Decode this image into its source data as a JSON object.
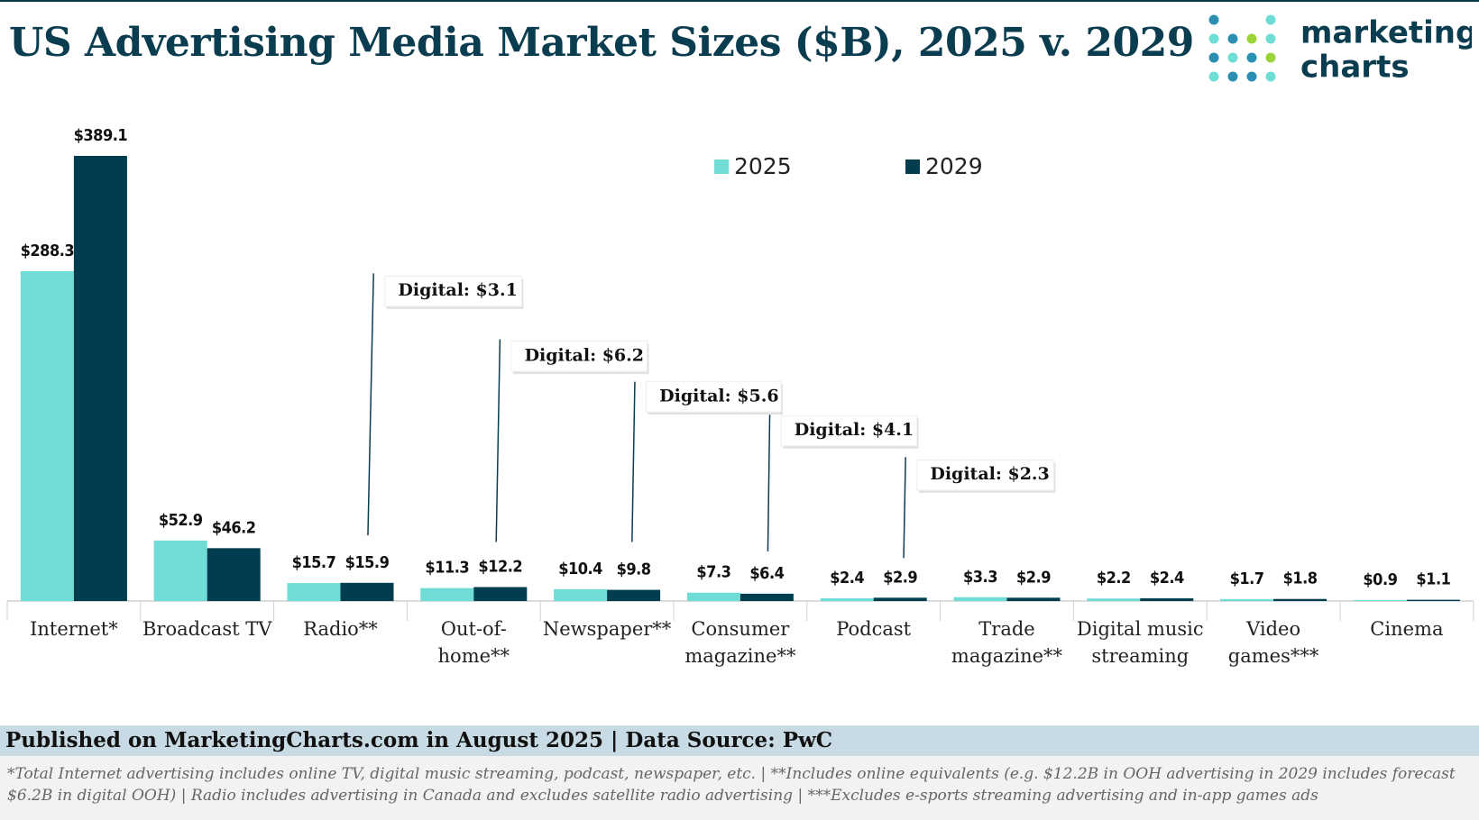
{
  "chart_data": {
    "type": "bar",
    "title": "US Advertising Media Market Sizes ($B), 2025 v. 2029",
    "categories": [
      "Internet*",
      "Broadcast TV",
      "Radio**",
      "Out-of-home**",
      "Newspaper**",
      "Consumer magazine**",
      "Podcast",
      "Trade magazine**",
      "Digital music streaming",
      "Video games***",
      "Cinema"
    ],
    "series": [
      {
        "name": "2025",
        "color": "#6fdcd6",
        "values": [
          288.3,
          52.9,
          15.7,
          11.3,
          10.4,
          7.3,
          2.4,
          3.3,
          2.2,
          1.7,
          0.9
        ],
        "value_labels": [
          "$288.3",
          "$52.9",
          "$15.7",
          "$11.3",
          "$10.4",
          "$7.3",
          "$2.4",
          "$3.3",
          "$2.2",
          "$1.7",
          "$0.9"
        ]
      },
      {
        "name": "2029",
        "color": "#003d4f",
        "values": [
          389.1,
          46.2,
          15.9,
          12.2,
          9.8,
          6.4,
          2.9,
          2.9,
          2.4,
          1.8,
          1.1
        ],
        "value_labels": [
          "$389.1",
          "$46.2",
          "$15.9",
          "$12.2",
          "$9.8",
          "$6.4",
          "$2.9",
          "$2.9",
          "$2.4",
          "$1.8",
          "$1.1"
        ]
      }
    ],
    "annotations": [
      "Digital: $3.1",
      "Digital: $6.2",
      "Digital: $5.6",
      "Digital: $4.1",
      "Digital: $2.3"
    ],
    "legend": "top"
  },
  "logo": {
    "line1": "marketing",
    "line2": "charts"
  },
  "footer": {
    "published": "Published on MarketingCharts.com in August 2025 | Data Source: PwC",
    "notes": "*Total Internet advertising includes online TV, digital music streaming, podcast, newspaper, etc. | **Includes online equivalents (e.g. $12.2B in OOH advertising in 2029 includes forecast $6.2B in digital OOH) |  Radio includes advertising in Canada and excludes satellite radio advertising | ***Excludes e-sports streaming advertising and in-app games ads"
  }
}
